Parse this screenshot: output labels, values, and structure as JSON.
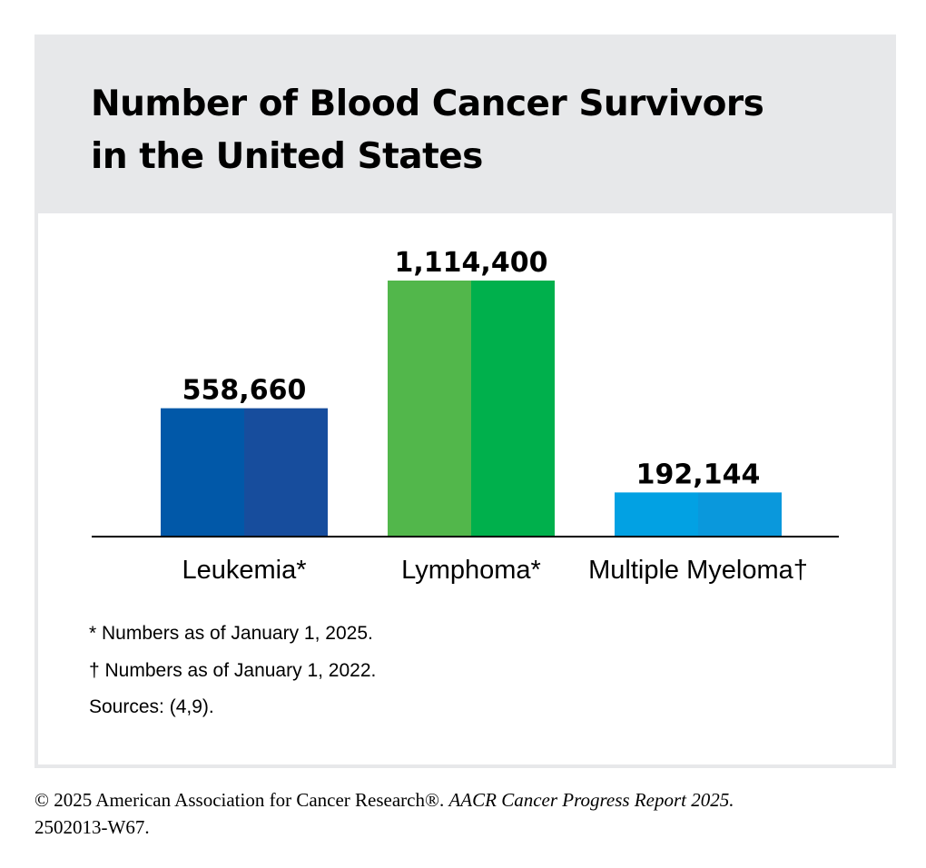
{
  "title": "Number of Blood Cancer Survivors\nin the United States",
  "colors": {
    "header_bg": "#e7e8ea",
    "leukemia": [
      "#0158a8",
      "#174d9d"
    ],
    "lymphoma": [
      "#52b74b",
      "#00b04c"
    ],
    "myeloma": [
      "#02a1e3",
      "#0a98dc"
    ]
  },
  "chart_data": {
    "type": "bar",
    "categories": [
      "Leukemia*",
      "Lymphoma*",
      "Multiple Myeloma†"
    ],
    "values": [
      558660,
      1114400,
      192144
    ],
    "value_labels": [
      "558,660",
      "1,114,400",
      "192,144"
    ],
    "title": "Number of Blood Cancer Survivors in the United States",
    "xlabel": "",
    "ylabel": "",
    "ylim": [
      0,
      1114400
    ],
    "grid": false,
    "axis": "x-baseline-only"
  },
  "footnotes": [
    "* Numbers as of January 1, 2025.",
    "† Numbers as of January 1, 2022.",
    "Sources: (4,9)."
  ],
  "credit": {
    "prefix": "© 2025 American Association for Cancer Research®. ",
    "report": "AACR Cancer Progress Report 2025.",
    "id": "2502013-W67."
  }
}
